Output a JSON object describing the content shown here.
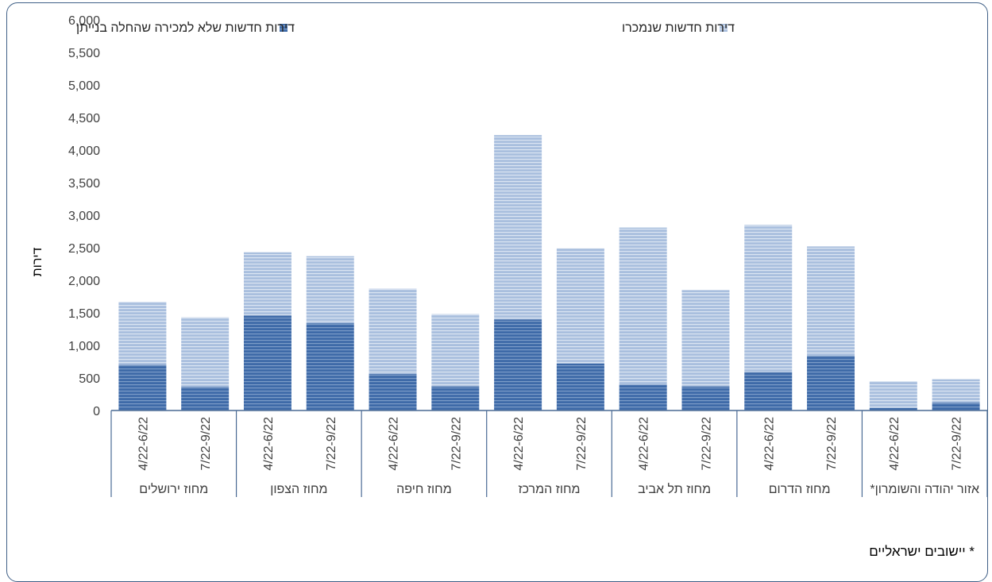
{
  "chart_data": {
    "type": "bar",
    "stacked": true,
    "ylabel": "דירות",
    "ylim": [
      0,
      6000
    ],
    "yticks": [
      0,
      500,
      1000,
      1500,
      2000,
      2500,
      3000,
      3500,
      4000,
      4500,
      5000,
      5500,
      6000
    ],
    "ytick_labels": [
      "0",
      "500",
      "1,000",
      "1,500",
      "2,000",
      "2,500",
      "3,000",
      "3,500",
      "4,000",
      "4,500",
      "5,000",
      "5,500",
      "6,000"
    ],
    "categories": [
      "4/22-6/22",
      "7/22-9/22",
      "4/22-6/22",
      "7/22-9/22",
      "4/22-6/22",
      "7/22-9/22",
      "4/22-6/22",
      "7/22-9/22",
      "4/22-6/22",
      "7/22-9/22",
      "4/22-6/22",
      "7/22-9/22",
      "4/22-6/22",
      "7/22-9/22"
    ],
    "groups": [
      "מחוז ירושלים",
      "מחוז הצפון",
      "מחוז חיפה",
      "מחוז המרכז",
      "מחוז תל אביב",
      "מחוז הדרום",
      "אזור יהודה והשומרון*"
    ],
    "series": [
      {
        "name": "דירות חדשות שלא למכירה שהחלה בנייתן",
        "color": "#3e6aa8",
        "values": [
          700,
          360,
          1460,
          1340,
          560,
          370,
          1400,
          720,
          400,
          370,
          590,
          840,
          40,
          120
        ]
      },
      {
        "name": "דירות חדשות שנמכרו",
        "color": "#a7bcdc",
        "values": [
          970,
          1070,
          970,
          1030,
          1310,
          1110,
          2830,
          1770,
          2410,
          1480,
          2260,
          1680,
          410,
          360
        ]
      }
    ],
    "legend_position": "top",
    "grid": false
  },
  "footnote": "* יישובים ישראליים"
}
